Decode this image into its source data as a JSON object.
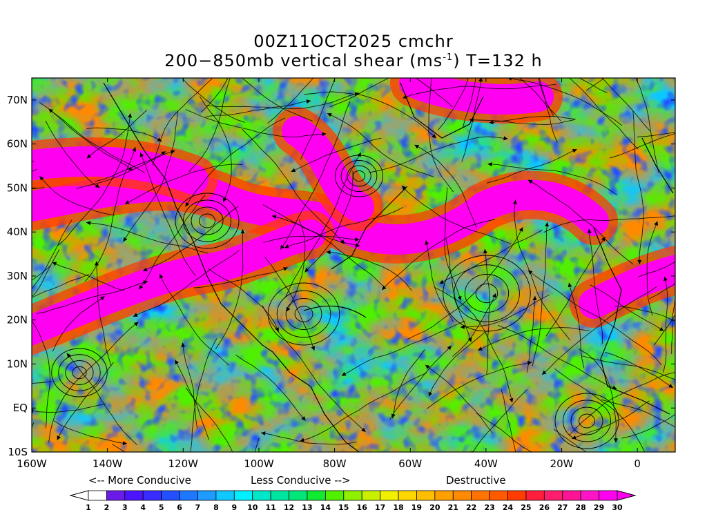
{
  "title": {
    "line1": "00Z11OCT2025 cmchr",
    "line2_prefix": "200−850mb vertical shear (ms",
    "line2_sup": "-1",
    "line2_suffix": ") T=132 h"
  },
  "map": {
    "lat_labels": [
      "70N",
      "60N",
      "50N",
      "40N",
      "30N",
      "20N",
      "10N",
      "EQ",
      "10S"
    ],
    "lon_labels": [
      "160W",
      "140W",
      "120W",
      "100W",
      "80W",
      "60W",
      "40W",
      "20W",
      "0"
    ]
  },
  "legend": {
    "more_conducive": "<-- More Conducive",
    "less_conducive": "Less Conducive -->",
    "destructive": "Destructive"
  },
  "colorbar": {
    "labels": [
      "1",
      "2",
      "3",
      "4",
      "5",
      "6",
      "7",
      "8",
      "9",
      "10",
      "11",
      "12",
      "13",
      "14",
      "15",
      "16",
      "17",
      "18",
      "19",
      "20",
      "21",
      "22",
      "23",
      "24",
      "25",
      "26",
      "27",
      "28",
      "29",
      "30"
    ],
    "colors": [
      "#ffffff",
      "#6a1be8",
      "#4c14ff",
      "#3a2cff",
      "#2250ff",
      "#1e78ff",
      "#1e9bff",
      "#10c8ff",
      "#00f0ff",
      "#00e6c8",
      "#00e6a0",
      "#00e678",
      "#10ea30",
      "#50f000",
      "#90f000",
      "#c8f000",
      "#f0f000",
      "#ffd700",
      "#ffbe00",
      "#ffa000",
      "#ff8a00",
      "#ff7300",
      "#ff5a00",
      "#ff3c00",
      "#ff1e3c",
      "#ff1e6e",
      "#ff1496",
      "#ff14c8",
      "#ff00f0"
    ]
  }
}
